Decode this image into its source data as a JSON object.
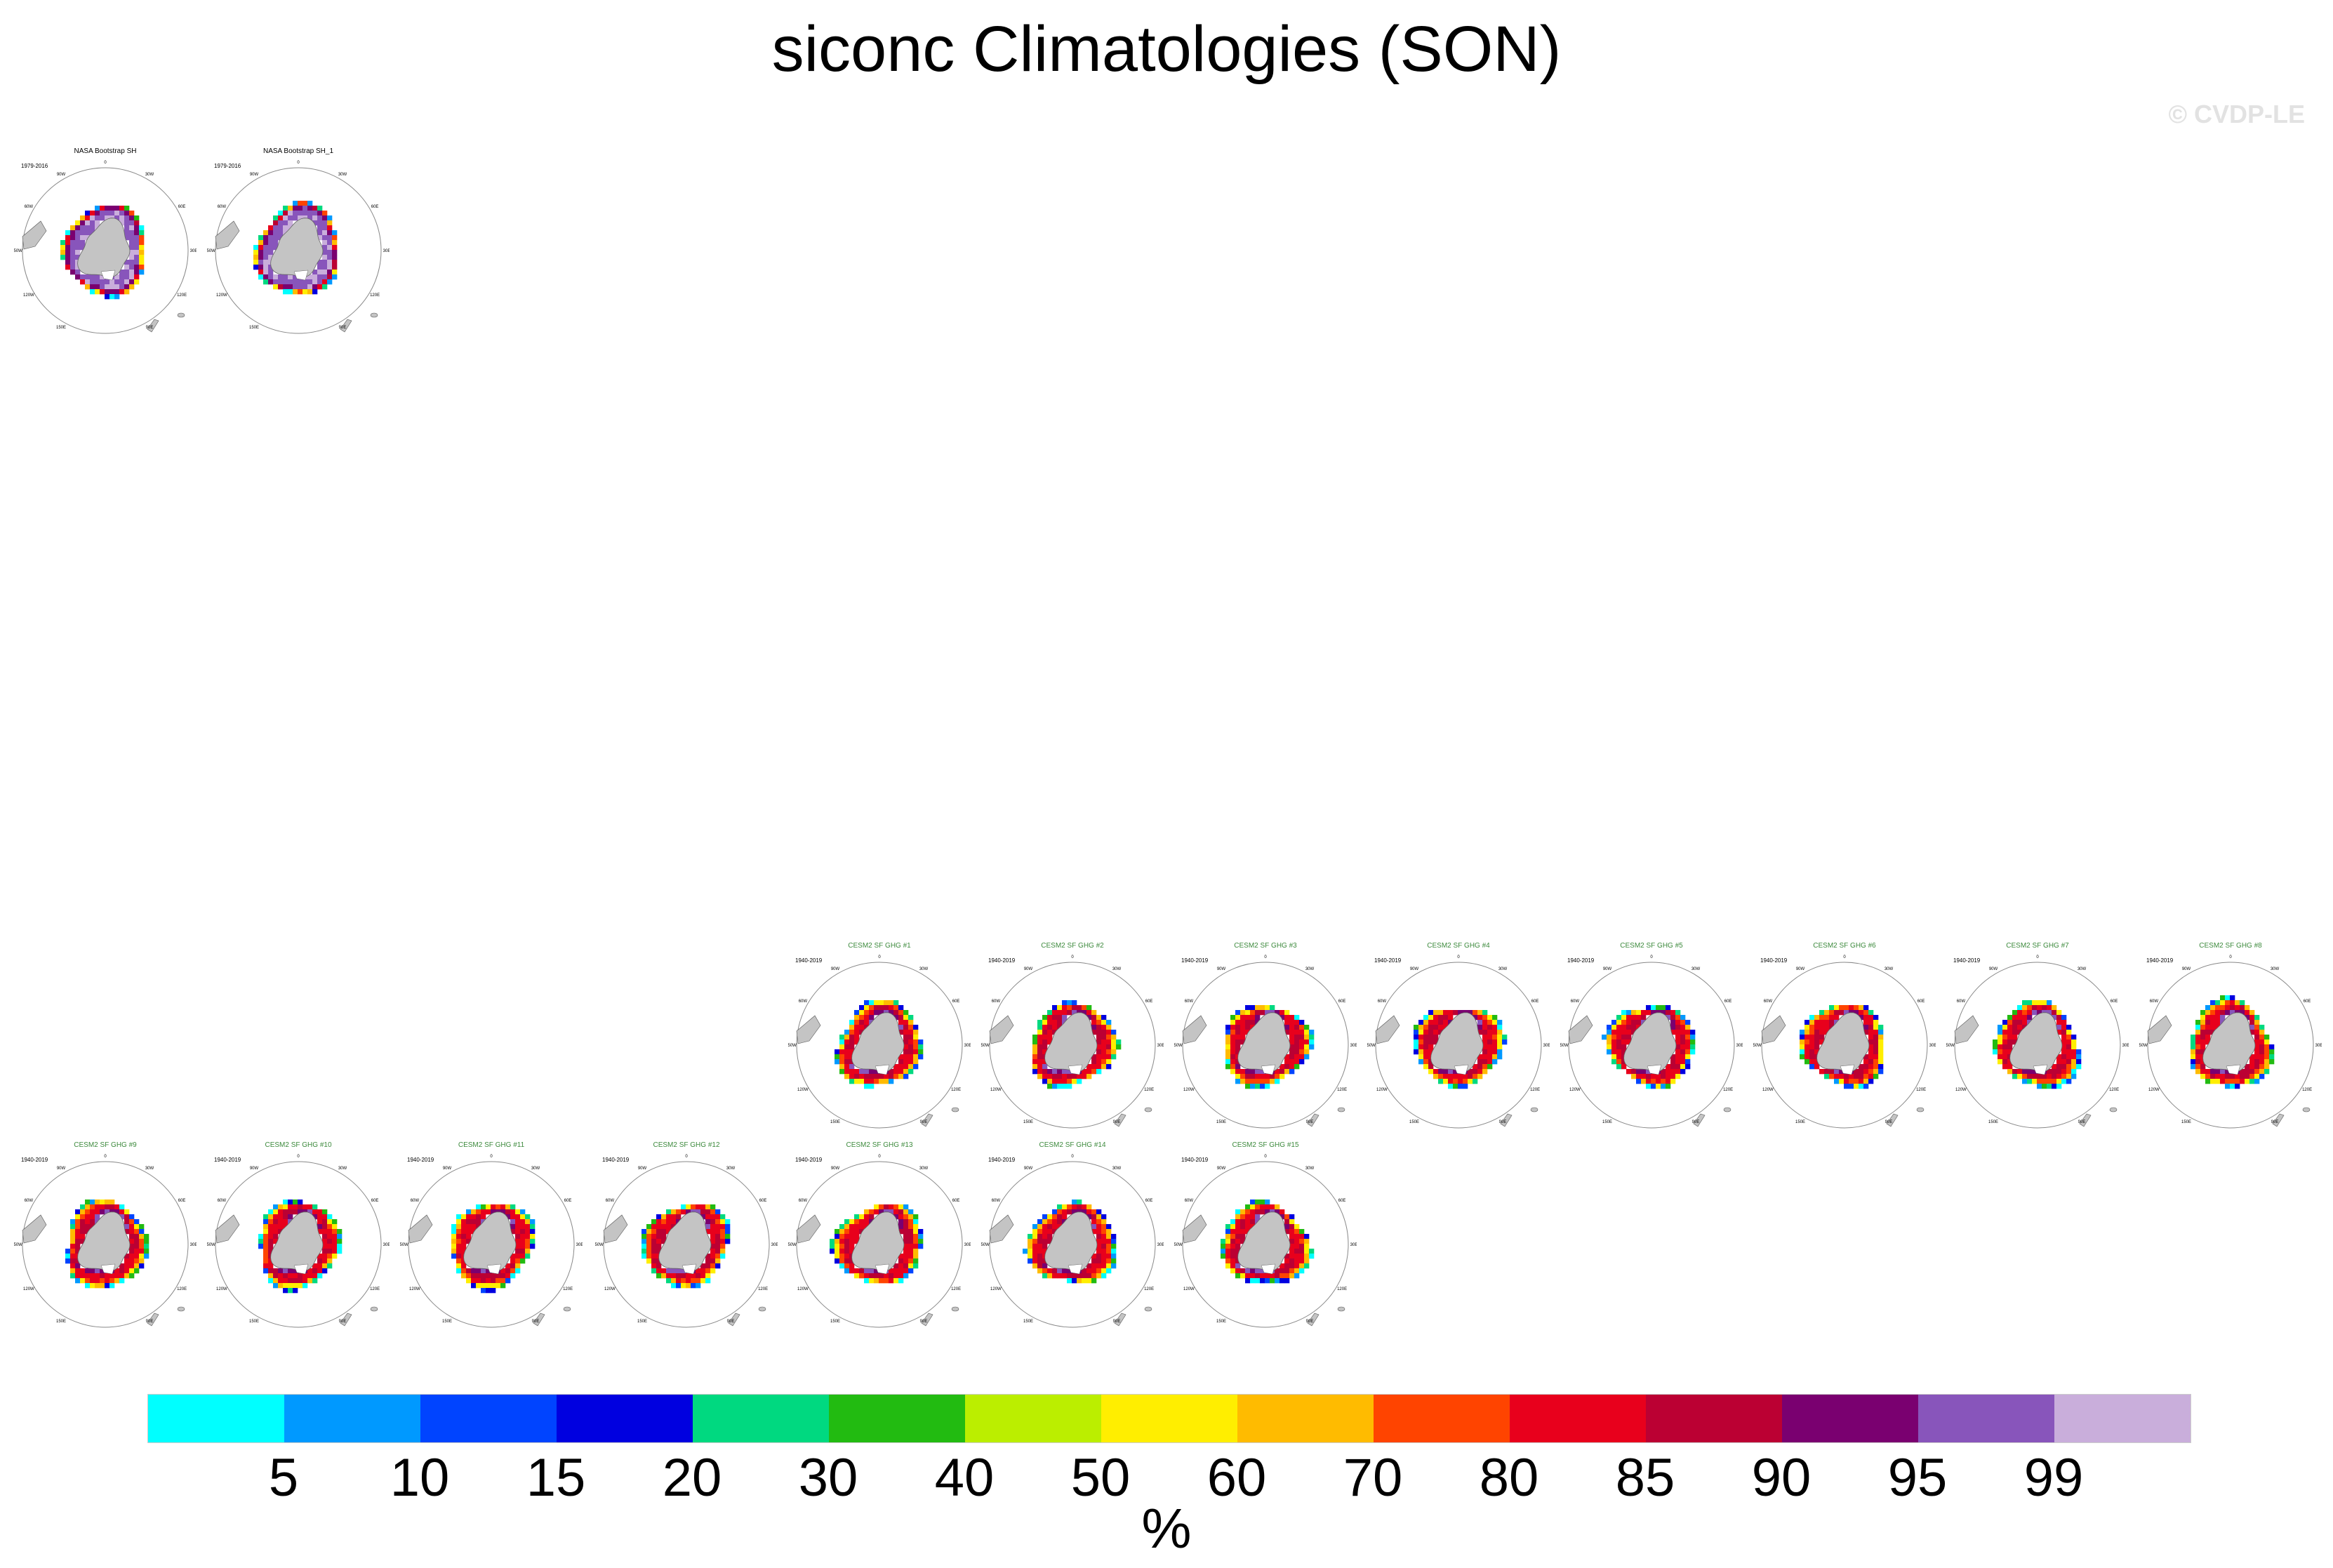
{
  "title": "siconc Climatologies (SON)",
  "copyright": "© CVDP-LE",
  "colorbar": {
    "units": "%",
    "ticks": [
      "5",
      "10",
      "15",
      "20",
      "30",
      "40",
      "50",
      "60",
      "70",
      "80",
      "85",
      "90",
      "95",
      "99"
    ],
    "colors": [
      "#00ffff",
      "#0099ff",
      "#0044ff",
      "#0000e0",
      "#00d980",
      "#22bb11",
      "#bbee00",
      "#ffee00",
      "#ffbb00",
      "#ff4400",
      "#e8001c",
      "#bb0033",
      "#7a0070",
      "#8855bb",
      "#c9aedb"
    ]
  },
  "panels": [
    {
      "title": "NASA Bootstrap SH",
      "years": "1979-2016",
      "kind": "obs"
    },
    {
      "title": "NASA Bootstrap SH_1",
      "years": "1979-2016",
      "kind": "obs"
    },
    {
      "title": "CESM2 SF GHG #1",
      "years": "1940-2019",
      "kind": "model"
    },
    {
      "title": "CESM2 SF GHG #2",
      "years": "1940-2019",
      "kind": "model"
    },
    {
      "title": "CESM2 SF GHG #3",
      "years": "1940-2019",
      "kind": "model"
    },
    {
      "title": "CESM2 SF GHG #4",
      "years": "1940-2019",
      "kind": "model"
    },
    {
      "title": "CESM2 SF GHG #5",
      "years": "1940-2019",
      "kind": "model"
    },
    {
      "title": "CESM2 SF GHG #6",
      "years": "1940-2019",
      "kind": "model"
    },
    {
      "title": "CESM2 SF GHG #7",
      "years": "1940-2019",
      "kind": "model"
    },
    {
      "title": "CESM2 SF GHG #8",
      "years": "1940-2019",
      "kind": "model"
    },
    {
      "title": "CESM2 SF GHG #9",
      "years": "1940-2019",
      "kind": "model"
    },
    {
      "title": "CESM2 SF GHG #10",
      "years": "1940-2019",
      "kind": "model"
    },
    {
      "title": "CESM2 SF GHG #11",
      "years": "1940-2019",
      "kind": "model"
    },
    {
      "title": "CESM2 SF GHG #12",
      "years": "1940-2019",
      "kind": "model"
    },
    {
      "title": "CESM2 SF GHG #13",
      "years": "1940-2019",
      "kind": "model"
    },
    {
      "title": "CESM2 SF GHG #14",
      "years": "1940-2019",
      "kind": "model"
    },
    {
      "title": "CESM2 SF GHG #15",
      "years": "1940-2019",
      "kind": "model"
    }
  ],
  "map_labels": [
    "0",
    "60E",
    "120E",
    "180",
    "120W",
    "60W",
    "30W",
    "30E",
    "90E",
    "150E",
    "150W",
    "90W"
  ]
}
